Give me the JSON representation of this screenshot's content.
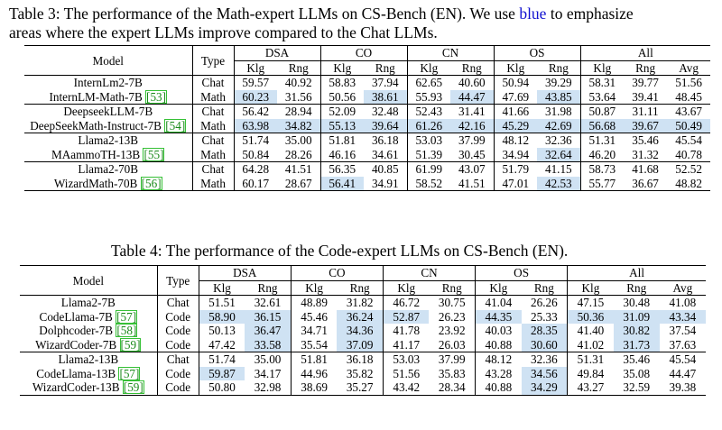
{
  "table3": {
    "caption_prefix": "Table 3: The performance of the Math-expert LLMs on CS-Bench (EN). We use ",
    "caption_blue": "blue",
    "caption_suffix": " to emphasize",
    "caption_line2": "areas where the expert LLMs improve compared to the Chat LLMs.",
    "col_model": "Model",
    "col_type": "Type",
    "groups": [
      "DSA",
      "CO",
      "CN",
      "OS",
      "All"
    ],
    "subheaders": [
      "Klg",
      "Rng",
      "Klg",
      "Rng",
      "Klg",
      "Rng",
      "Klg",
      "Rng",
      "Klg",
      "Rng",
      "Avg"
    ],
    "blocks": [
      {
        "rows": [
          {
            "model": "InternLm2-7B",
            "cite": "",
            "type": "Chat",
            "values": [
              "59.57",
              "40.92",
              "58.83",
              "37.94",
              "62.65",
              "40.60",
              "50.94",
              "39.29",
              "58.31",
              "39.77",
              "51.56"
            ],
            "hl": []
          },
          {
            "model": "InternLM-Math-7B ",
            "cite": "[53]",
            "type": "Math",
            "values": [
              "60.23",
              "31.56",
              "50.56",
              "38.61",
              "55.93",
              "44.47",
              "47.69",
              "43.85",
              "53.64",
              "39.41",
              "48.45"
            ],
            "hl": [
              0,
              3,
              5,
              7
            ]
          }
        ]
      },
      {
        "rows": [
          {
            "model": "DeepseekLLM-7B",
            "cite": "",
            "type": "Chat",
            "values": [
              "56.42",
              "28.94",
              "52.09",
              "32.48",
              "52.43",
              "31.41",
              "41.66",
              "31.98",
              "50.87",
              "31.11",
              "43.67"
            ],
            "hl": []
          },
          {
            "model": "DeepSeekMath-Instruct-7B ",
            "cite": "[54]",
            "type": "Math",
            "values": [
              "63.98",
              "34.82",
              "55.13",
              "39.64",
              "61.26",
              "42.16",
              "45.29",
              "42.69",
              "56.68",
              "39.67",
              "50.49"
            ],
            "hl": [
              0,
              1,
              2,
              3,
              4,
              5,
              6,
              7,
              8,
              9,
              10
            ]
          }
        ]
      },
      {
        "rows": [
          {
            "model": "Llama2-13B",
            "cite": "",
            "type": "Chat",
            "values": [
              "51.74",
              "35.00",
              "51.81",
              "36.18",
              "53.03",
              "37.99",
              "48.12",
              "32.36",
              "51.31",
              "35.46",
              "45.54"
            ],
            "hl": []
          },
          {
            "model": "MAammoTH-13B ",
            "cite": "[55]",
            "type": "Math",
            "values": [
              "50.84",
              "28.26",
              "46.16",
              "34.61",
              "51.39",
              "30.45",
              "34.94",
              "32.64",
              "46.20",
              "31.32",
              "40.78"
            ],
            "hl": [
              7
            ]
          }
        ]
      },
      {
        "rows": [
          {
            "model": "Llama2-70B",
            "cite": "",
            "type": "Chat",
            "values": [
              "64.28",
              "41.51",
              "56.35",
              "40.85",
              "61.99",
              "43.07",
              "51.79",
              "41.15",
              "58.73",
              "41.68",
              "52.52"
            ],
            "hl": []
          },
          {
            "model": "WizardMath-70B ",
            "cite": "[56]",
            "type": "Math",
            "values": [
              "60.17",
              "28.67",
              "56.41",
              "34.91",
              "58.52",
              "41.51",
              "47.01",
              "42.53",
              "55.77",
              "36.67",
              "48.82"
            ],
            "hl": [
              2,
              7
            ]
          }
        ]
      }
    ]
  },
  "table4": {
    "caption": "Table 4: The performance of the Code-expert LLMs on CS-Bench (EN).",
    "col_model": "Model",
    "col_type": "Type",
    "groups": [
      "DSA",
      "CO",
      "CN",
      "OS",
      "All"
    ],
    "subheaders": [
      "Klg",
      "Rng",
      "Klg",
      "Rng",
      "Klg",
      "Rng",
      "Klg",
      "Rng",
      "Klg",
      "Rng",
      "Avg"
    ],
    "blocks": [
      {
        "rows": [
          {
            "model": "Llama2-7B",
            "cite": "",
            "type": "Chat",
            "values": [
              "51.51",
              "32.61",
              "48.89",
              "31.82",
              "46.72",
              "30.75",
              "41.04",
              "26.26",
              "47.15",
              "30.48",
              "41.08"
            ],
            "hl": []
          },
          {
            "model": "CodeLlama-7B ",
            "cite": "[57]",
            "type": "Code",
            "values": [
              "58.90",
              "36.15",
              "45.46",
              "36.24",
              "52.87",
              "26.23",
              "44.35",
              "25.33",
              "50.36",
              "31.09",
              "43.34"
            ],
            "hl": [
              0,
              1,
              3,
              4,
              6,
              8,
              9,
              10
            ]
          },
          {
            "model": "Dolphcoder-7B ",
            "cite": "[58]",
            "type": "Code",
            "values": [
              "50.13",
              "36.47",
              "34.71",
              "34.36",
              "41.78",
              "23.92",
              "40.03",
              "28.35",
              "41.40",
              "30.82",
              "37.54"
            ],
            "hl": [
              1,
              3,
              7,
              9
            ]
          },
          {
            "model": "WizardCoder-7B ",
            "cite": "[59]",
            "type": "Code",
            "values": [
              "47.42",
              "33.58",
              "35.54",
              "37.09",
              "41.17",
              "26.03",
              "40.88",
              "30.60",
              "41.02",
              "31.73",
              "37.63"
            ],
            "hl": [
              1,
              3,
              7,
              9
            ]
          }
        ]
      },
      {
        "rows": [
          {
            "model": "Llama2-13B",
            "cite": "",
            "type": "Chat",
            "values": [
              "51.74",
              "35.00",
              "51.81",
              "36.18",
              "53.03",
              "37.99",
              "48.12",
              "32.36",
              "51.31",
              "35.46",
              "45.54"
            ],
            "hl": []
          },
          {
            "model": "CodeLlama-13B ",
            "cite": "[57]",
            "type": "Code",
            "values": [
              "59.87",
              "34.17",
              "44.96",
              "35.82",
              "51.56",
              "35.83",
              "43.28",
              "34.56",
              "49.84",
              "35.08",
              "44.47"
            ],
            "hl": [
              0,
              7
            ]
          },
          {
            "model": "WizardCoder-13B ",
            "cite": "[59]",
            "type": "Code",
            "values": [
              "50.80",
              "32.98",
              "38.69",
              "35.27",
              "43.42",
              "28.34",
              "40.88",
              "34.29",
              "43.27",
              "32.59",
              "39.38"
            ],
            "hl": [
              7
            ]
          }
        ]
      }
    ]
  }
}
